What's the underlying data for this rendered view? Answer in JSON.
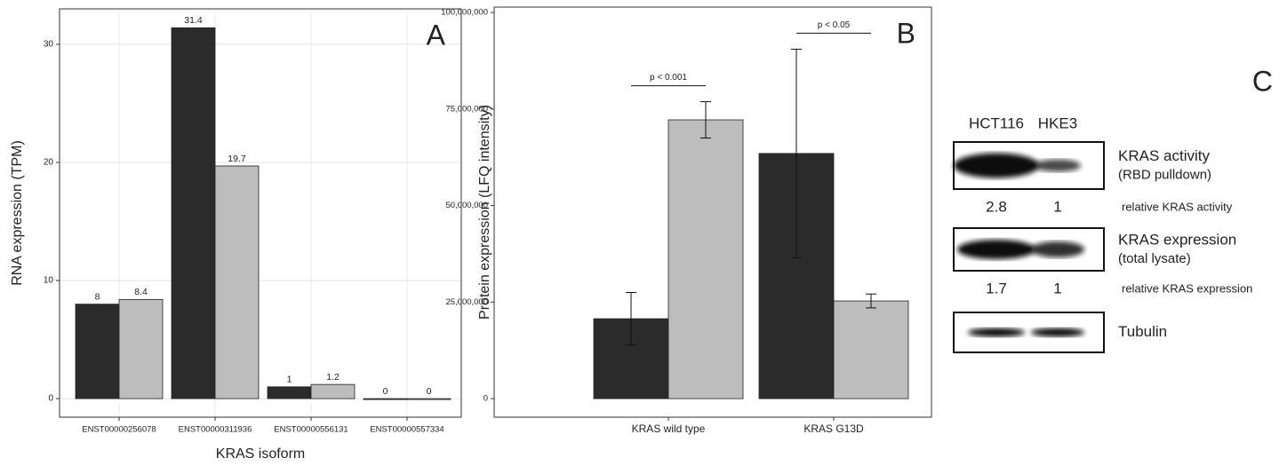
{
  "chart_data": [
    {
      "type": "bar",
      "panel": "A",
      "ylabel": "RNA expression (TPM)",
      "xlabel": "KRAS isoform",
      "categories": [
        "ENST00000256078",
        "ENST00000311936",
        "ENST00000556131",
        "ENST00000557334"
      ],
      "series": [
        {
          "color": "#2b2b2b",
          "values": [
            8,
            31.4,
            1,
            0
          ]
        },
        {
          "color": "#bdbdbd",
          "values": [
            8.4,
            19.7,
            1.2,
            0
          ]
        }
      ],
      "ylim": [
        -1.57,
        33.0
      ],
      "yticks": [
        0,
        10,
        20,
        30
      ],
      "grid": true,
      "data_labels": true
    },
    {
      "type": "bar",
      "panel": "B",
      "ylabel": "Protein expression (LFQ intensity)",
      "categories": [
        "KRAS wild type",
        "KRAS G13D"
      ],
      "series": [
        {
          "color": "#2b2b2b",
          "values": [
            20700000,
            63500000
          ],
          "errors": [
            6800000,
            27000000
          ]
        },
        {
          "color": "#bdbdbd",
          "values": [
            72200000,
            25300000
          ],
          "errors": [
            4700000,
            1800000
          ]
        }
      ],
      "ylim": [
        -4800000,
        101400000
      ],
      "yticks": [
        0,
        {
          "value": 25000000,
          "label": "25,000,000"
        },
        {
          "value": 50000000,
          "label": "50,000,000"
        },
        {
          "value": 75000000,
          "label": "75,000,000"
        },
        {
          "value": 100000000,
          "label": "100,000,000"
        }
      ],
      "grid": false,
      "annotations": [
        "p < 0.001",
        "p < 0.05"
      ]
    }
  ],
  "blot": {
    "panel": "C",
    "lanes": [
      "HCT116",
      "HKE3"
    ],
    "rows": [
      {
        "label": "KRAS activity",
        "sublabel": "(RBD pulldown)",
        "quantities": [
          2.8,
          1
        ],
        "quantity_label": "relative KRAS activity"
      },
      {
        "label": "KRAS expression",
        "sublabel": "(total lysate)",
        "quantities": [
          1.7,
          1
        ],
        "quantity_label": "relative KRAS expression"
      },
      {
        "label": "Tubulin"
      }
    ]
  }
}
